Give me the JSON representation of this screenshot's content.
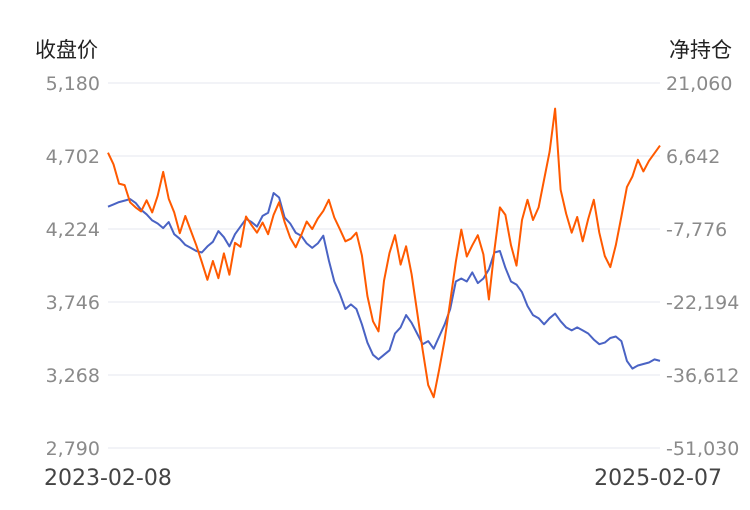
{
  "chart_data": {
    "type": "line",
    "left_axis_title": "收盘价",
    "right_axis_title": "净持仓",
    "x_start": "2023-02-08",
    "x_end": "2025-02-07",
    "left_ticks": [
      "5,180",
      "4,702",
      "4,224",
      "3,746",
      "3,268",
      "2,790"
    ],
    "right_ticks": [
      "21,060",
      "6,642",
      "-7,776",
      "-22,194",
      "-36,612",
      "-51,030"
    ],
    "left_range": [
      2790,
      5180
    ],
    "right_range": [
      -51030,
      21060
    ],
    "grid": true,
    "series": [
      {
        "axis": "left",
        "color": "#4a63c4",
        "points": [
          [
            0,
            4370
          ],
          [
            0.01,
            4385
          ],
          [
            0.02,
            4400
          ],
          [
            0.03,
            4410
          ],
          [
            0.04,
            4420
          ],
          [
            0.05,
            4395
          ],
          [
            0.06,
            4350
          ],
          [
            0.07,
            4320
          ],
          [
            0.08,
            4280
          ],
          [
            0.09,
            4260
          ],
          [
            0.1,
            4230
          ],
          [
            0.11,
            4270
          ],
          [
            0.12,
            4190
          ],
          [
            0.13,
            4160
          ],
          [
            0.14,
            4120
          ],
          [
            0.15,
            4100
          ],
          [
            0.16,
            4080
          ],
          [
            0.17,
            4070
          ],
          [
            0.18,
            4110
          ],
          [
            0.19,
            4140
          ],
          [
            0.2,
            4210
          ],
          [
            0.21,
            4170
          ],
          [
            0.22,
            4110
          ],
          [
            0.23,
            4190
          ],
          [
            0.24,
            4240
          ],
          [
            0.25,
            4290
          ],
          [
            0.26,
            4270
          ],
          [
            0.27,
            4240
          ],
          [
            0.28,
            4310
          ],
          [
            0.29,
            4330
          ],
          [
            0.3,
            4460
          ],
          [
            0.31,
            4430
          ],
          [
            0.32,
            4300
          ],
          [
            0.33,
            4260
          ],
          [
            0.34,
            4200
          ],
          [
            0.35,
            4180
          ],
          [
            0.36,
            4130
          ],
          [
            0.37,
            4100
          ],
          [
            0.38,
            4130
          ],
          [
            0.39,
            4180
          ],
          [
            0.4,
            4020
          ],
          [
            0.41,
            3880
          ],
          [
            0.42,
            3800
          ],
          [
            0.43,
            3700
          ],
          [
            0.44,
            3730
          ],
          [
            0.45,
            3700
          ],
          [
            0.46,
            3600
          ],
          [
            0.47,
            3480
          ],
          [
            0.48,
            3400
          ],
          [
            0.49,
            3370
          ],
          [
            0.5,
            3400
          ],
          [
            0.51,
            3430
          ],
          [
            0.52,
            3540
          ],
          [
            0.53,
            3580
          ],
          [
            0.54,
            3660
          ],
          [
            0.55,
            3610
          ],
          [
            0.56,
            3540
          ],
          [
            0.57,
            3470
          ],
          [
            0.58,
            3490
          ],
          [
            0.59,
            3440
          ],
          [
            0.6,
            3520
          ],
          [
            0.61,
            3600
          ],
          [
            0.62,
            3700
          ],
          [
            0.63,
            3880
          ],
          [
            0.64,
            3900
          ],
          [
            0.65,
            3880
          ],
          [
            0.66,
            3940
          ],
          [
            0.67,
            3870
          ],
          [
            0.68,
            3900
          ],
          [
            0.69,
            3960
          ],
          [
            0.7,
            4070
          ],
          [
            0.71,
            4080
          ],
          [
            0.72,
            3970
          ],
          [
            0.73,
            3880
          ],
          [
            0.74,
            3860
          ],
          [
            0.75,
            3810
          ],
          [
            0.76,
            3720
          ],
          [
            0.77,
            3660
          ],
          [
            0.78,
            3640
          ],
          [
            0.79,
            3600
          ],
          [
            0.8,
            3640
          ],
          [
            0.81,
            3670
          ],
          [
            0.82,
            3620
          ],
          [
            0.83,
            3580
          ],
          [
            0.84,
            3560
          ],
          [
            0.85,
            3580
          ],
          [
            0.86,
            3560
          ],
          [
            0.87,
            3540
          ],
          [
            0.88,
            3500
          ],
          [
            0.89,
            3470
          ],
          [
            0.9,
            3480
          ],
          [
            0.91,
            3510
          ],
          [
            0.92,
            3520
          ],
          [
            0.93,
            3490
          ],
          [
            0.94,
            3360
          ],
          [
            0.95,
            3310
          ],
          [
            0.96,
            3330
          ],
          [
            0.97,
            3340
          ],
          [
            0.98,
            3350
          ],
          [
            0.99,
            3370
          ],
          [
            1,
            3360
          ]
        ]
      },
      {
        "axis": "right",
        "color": "#ff5a00",
        "points": [
          [
            0,
            7300
          ],
          [
            0.01,
            5000
          ],
          [
            0.02,
            1200
          ],
          [
            0.03,
            900
          ],
          [
            0.04,
            -2500
          ],
          [
            0.05,
            -3500
          ],
          [
            0.06,
            -4300
          ],
          [
            0.07,
            -2100
          ],
          [
            0.08,
            -4500
          ],
          [
            0.09,
            -1200
          ],
          [
            0.1,
            3500
          ],
          [
            0.11,
            -1800
          ],
          [
            0.12,
            -4500
          ],
          [
            0.13,
            -8600
          ],
          [
            0.14,
            -5200
          ],
          [
            0.15,
            -8100
          ],
          [
            0.16,
            -11000
          ],
          [
            0.17,
            -14300
          ],
          [
            0.18,
            -17800
          ],
          [
            0.19,
            -14100
          ],
          [
            0.2,
            -17500
          ],
          [
            0.21,
            -12600
          ],
          [
            0.22,
            -16800
          ],
          [
            0.23,
            -10500
          ],
          [
            0.24,
            -11300
          ],
          [
            0.25,
            -5300
          ],
          [
            0.26,
            -7000
          ],
          [
            0.27,
            -8500
          ],
          [
            0.28,
            -6500
          ],
          [
            0.29,
            -8800
          ],
          [
            0.3,
            -5000
          ],
          [
            0.31,
            -2500
          ],
          [
            0.32,
            -6400
          ],
          [
            0.33,
            -9500
          ],
          [
            0.34,
            -11400
          ],
          [
            0.35,
            -9000
          ],
          [
            0.36,
            -6300
          ],
          [
            0.37,
            -7800
          ],
          [
            0.38,
            -5700
          ],
          [
            0.39,
            -4200
          ],
          [
            0.4,
            -2000
          ],
          [
            0.41,
            -5500
          ],
          [
            0.42,
            -7800
          ],
          [
            0.43,
            -10200
          ],
          [
            0.44,
            -9700
          ],
          [
            0.45,
            -8500
          ],
          [
            0.46,
            -13000
          ],
          [
            0.47,
            -21000
          ],
          [
            0.48,
            -26000
          ],
          [
            0.49,
            -28000
          ],
          [
            0.5,
            -18000
          ],
          [
            0.51,
            -12500
          ],
          [
            0.52,
            -9000
          ],
          [
            0.53,
            -14800
          ],
          [
            0.54,
            -11200
          ],
          [
            0.55,
            -16700
          ],
          [
            0.56,
            -24100
          ],
          [
            0.57,
            -31600
          ],
          [
            0.58,
            -38600
          ],
          [
            0.59,
            -41000
          ],
          [
            0.6,
            -35500
          ],
          [
            0.61,
            -29600
          ],
          [
            0.62,
            -22100
          ],
          [
            0.63,
            -14300
          ],
          [
            0.64,
            -7900
          ],
          [
            0.65,
            -13200
          ],
          [
            0.66,
            -11000
          ],
          [
            0.67,
            -9000
          ],
          [
            0.68,
            -12800
          ],
          [
            0.69,
            -21700
          ],
          [
            0.7,
            -12000
          ],
          [
            0.71,
            -3500
          ],
          [
            0.72,
            -5000
          ],
          [
            0.73,
            -11000
          ],
          [
            0.74,
            -15000
          ],
          [
            0.75,
            -6000
          ],
          [
            0.76,
            -2000
          ],
          [
            0.77,
            -6000
          ],
          [
            0.78,
            -3500
          ],
          [
            0.79,
            2000
          ],
          [
            0.8,
            7500
          ],
          [
            0.81,
            16000
          ],
          [
            0.82,
            0
          ],
          [
            0.83,
            -4800
          ],
          [
            0.84,
            -8500
          ],
          [
            0.85,
            -5400
          ],
          [
            0.86,
            -10200
          ],
          [
            0.87,
            -5800
          ],
          [
            0.88,
            -2000
          ],
          [
            0.89,
            -8500
          ],
          [
            0.9,
            -13100
          ],
          [
            0.91,
            -15300
          ],
          [
            0.92,
            -11000
          ],
          [
            0.93,
            -5300
          ],
          [
            0.94,
            500
          ],
          [
            0.95,
            2600
          ],
          [
            0.96,
            5900
          ],
          [
            0.97,
            3600
          ],
          [
            0.98,
            5700
          ],
          [
            0.99,
            7200
          ],
          [
            1,
            8700
          ]
        ]
      }
    ]
  }
}
